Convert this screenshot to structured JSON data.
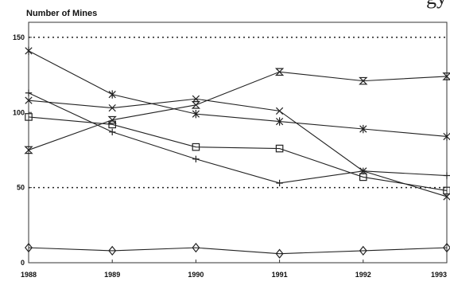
{
  "chart_data": {
    "type": "line",
    "ylabel": "Number of Mines",
    "x": [
      1988,
      1989,
      1990,
      1991,
      1992,
      1993
    ],
    "x_tick_labels": [
      "1988",
      "1989",
      "1990",
      "1991",
      "1992",
      "1993"
    ],
    "ylim": [
      0,
      160
    ],
    "y_ticks": [
      0,
      50,
      100,
      150
    ],
    "reference_lines": [
      50,
      150
    ],
    "series": [
      {
        "marker": "hourglass",
        "values": [
          75,
          95,
          105,
          127,
          121,
          124
        ]
      },
      {
        "marker": "asterisk",
        "values": [
          141,
          112,
          99,
          94,
          89,
          84
        ]
      },
      {
        "marker": "x",
        "values": [
          108,
          103,
          109,
          101,
          61,
          44
        ]
      },
      {
        "marker": "square",
        "values": [
          97,
          92,
          77,
          76,
          57,
          48
        ]
      },
      {
        "marker": "plus",
        "values": [
          113,
          87,
          69,
          53,
          61,
          58
        ]
      },
      {
        "marker": "diamond",
        "values": [
          10,
          8,
          10,
          6,
          8,
          10
        ]
      }
    ]
  },
  "title_fragment": "gy"
}
